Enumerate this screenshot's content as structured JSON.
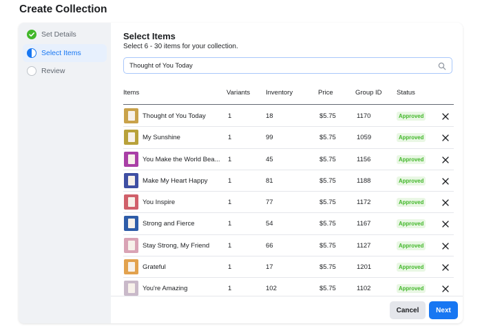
{
  "page": {
    "title": "Create Collection"
  },
  "steps": [
    {
      "label": "Set Details",
      "state": "done"
    },
    {
      "label": "Select Items",
      "state": "active"
    },
    {
      "label": "Review",
      "state": "pending"
    }
  ],
  "section": {
    "title": "Select Items",
    "subtitle": "Select 6 - 30 items for your collection."
  },
  "search": {
    "value": "Thought of You Today",
    "icon": "search-icon"
  },
  "table": {
    "headers": [
      "Items",
      "Variants",
      "Inventory",
      "Price",
      "Group ID",
      "Status"
    ],
    "rows": [
      {
        "name": "Thought of You Today",
        "variants": "1",
        "inventory": "18",
        "price": "$5.75",
        "group_id": "1170",
        "status": "Approved",
        "thumb_color": "#c9a24a"
      },
      {
        "name": "My Sunshine",
        "variants": "1",
        "inventory": "99",
        "price": "$5.75",
        "group_id": "1059",
        "status": "Approved",
        "thumb_color": "#b8a13a"
      },
      {
        "name": "You Make the World Bea...",
        "variants": "1",
        "inventory": "45",
        "price": "$5.75",
        "group_id": "1156",
        "status": "Approved",
        "thumb_color": "#a93fa6"
      },
      {
        "name": "Make My Heart Happy",
        "variants": "1",
        "inventory": "81",
        "price": "$5.75",
        "group_id": "1188",
        "status": "Approved",
        "thumb_color": "#3f4fa3"
      },
      {
        "name": "You Inspire",
        "variants": "1",
        "inventory": "77",
        "price": "$5.75",
        "group_id": "1172",
        "status": "Approved",
        "thumb_color": "#d0606a"
      },
      {
        "name": "Strong and Fierce",
        "variants": "1",
        "inventory": "54",
        "price": "$5.75",
        "group_id": "1167",
        "status": "Approved",
        "thumb_color": "#2e5ca8"
      },
      {
        "name": "Stay Strong, My Friend",
        "variants": "1",
        "inventory": "66",
        "price": "$5.75",
        "group_id": "1127",
        "status": "Approved",
        "thumb_color": "#d9a3b5"
      },
      {
        "name": "Grateful",
        "variants": "1",
        "inventory": "17",
        "price": "$5.75",
        "group_id": "1201",
        "status": "Approved",
        "thumb_color": "#e2a24e"
      },
      {
        "name": "You're Amazing",
        "variants": "1",
        "inventory": "102",
        "price": "$5.75",
        "group_id": "1102",
        "status": "Approved",
        "thumb_color": "#c9b9c9"
      }
    ]
  },
  "footer": {
    "cancel_label": "Cancel",
    "next_label": "Next"
  },
  "colors": {
    "accent": "#1877f2",
    "approved_text": "#42b72a",
    "approved_bg": "#e9f7e4",
    "done": "#42b72a"
  }
}
